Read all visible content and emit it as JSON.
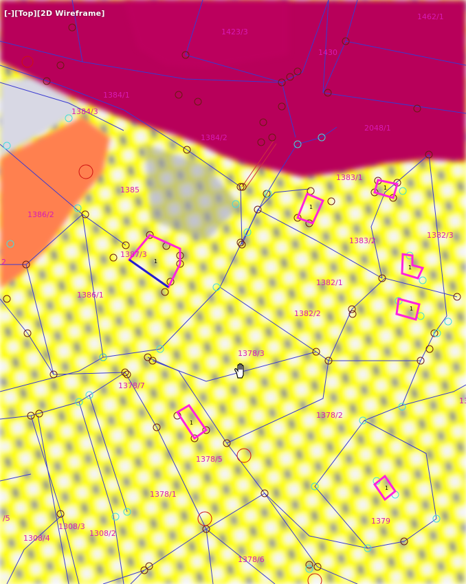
{
  "viewport": {
    "label": "[-][Top][2D Wireframe]"
  },
  "colors": {
    "road": "#b8005a",
    "field": "#ffff00",
    "checker_light": "#f4f4fa",
    "checker_dark": "#7c7f94",
    "orange_zone": "#ff8050",
    "parcel_line": "#3a3ad0",
    "parcel_label": "#d81ab4",
    "building_outline": "#ff22dd",
    "vertex_marker": "#6a1a10",
    "control_marker": "#44dddd",
    "point_marker": "#d01010"
  },
  "parcels": [
    {
      "id": "1423/3"
    },
    {
      "id": "1462/1"
    },
    {
      "id": "1430"
    },
    {
      "id": "1384/1"
    },
    {
      "id": "1384/3"
    },
    {
      "id": "1384/2"
    },
    {
      "id": "2048/1"
    },
    {
      "id": "1383/1"
    },
    {
      "id": "1385"
    },
    {
      "id": "1386/2"
    },
    {
      "id": "1383/2"
    },
    {
      "id": "1382/3"
    },
    {
      "id": "1387/3"
    },
    {
      "id": "1382/1"
    },
    {
      "id": "2"
    },
    {
      "id": "1386/1"
    },
    {
      "id": "1382/2"
    },
    {
      "id": "1378/3"
    },
    {
      "id": "1378/7"
    },
    {
      "id": "1378/2"
    },
    {
      "id": "1378/5"
    },
    {
      "id": "1378/1"
    },
    {
      "id": "1379"
    },
    {
      "id": "/5"
    },
    {
      "id": "1308/3"
    },
    {
      "id": "1308/2"
    },
    {
      "id": "1308/4"
    },
    {
      "id": "1378/6"
    },
    {
      "id": "13"
    }
  ],
  "buildings": [
    {
      "label": "1"
    },
    {
      "label": "1"
    },
    {
      "label": "1"
    },
    {
      "label": "1"
    },
    {
      "label": "1"
    },
    {
      "label": "1"
    },
    {
      "label": "1"
    }
  ],
  "cursor": {
    "icon": "hand-pan-icon"
  }
}
